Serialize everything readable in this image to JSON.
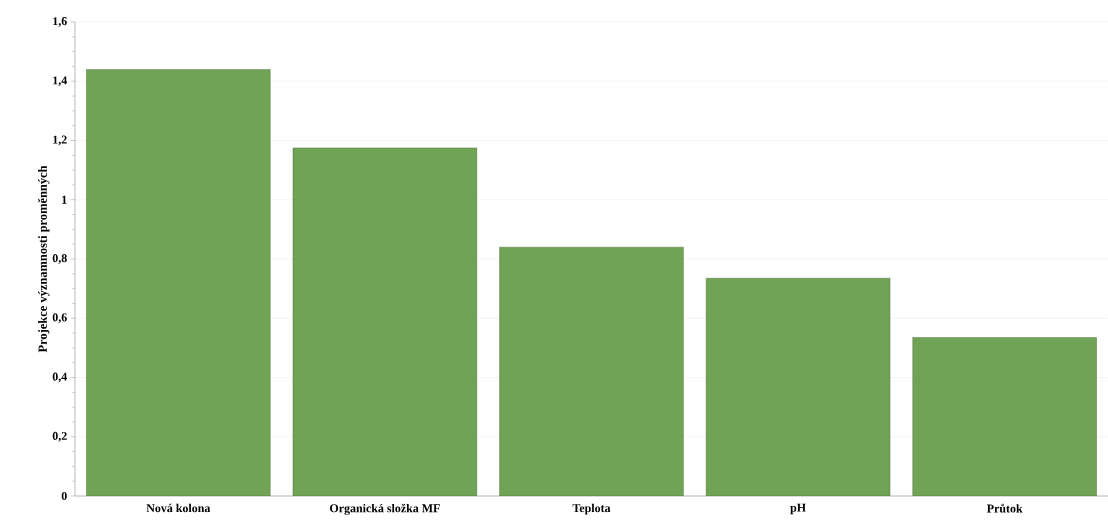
{
  "chart_data": {
    "type": "bar",
    "ylabel": "Projekce významnosti proměnných",
    "categories": [
      "Nová kolona",
      "Organická složka MF",
      "Teplota",
      "pH",
      "Průtok"
    ],
    "values": [
      1.44,
      1.175,
      0.84,
      0.735,
      0.535
    ],
    "color": "#70a355",
    "ylim": [
      0,
      1.6
    ],
    "yticks": [
      0,
      {
        "value": 0.2,
        "label": "0,2"
      },
      {
        "value": 0.4,
        "label": "0,4"
      },
      {
        "value": 0.6,
        "label": "0,6"
      },
      {
        "value": 0.8,
        "label": "0,8"
      },
      1,
      {
        "value": 1.2,
        "label": "1,2"
      },
      {
        "value": 1.4,
        "label": "1,4"
      },
      {
        "value": 1.6,
        "label": "1,6"
      }
    ],
    "grid": "y"
  }
}
